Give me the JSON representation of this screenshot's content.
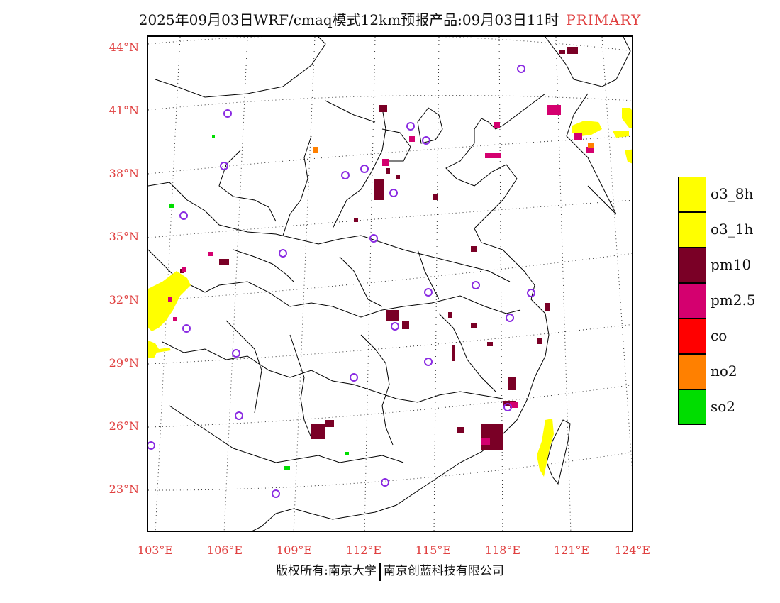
{
  "title": "2025年09月03日WRF/cmaq模式12km预报产品:09月03日11时",
  "title_tag": "PRIMARY",
  "lat_labels": [
    "44°N",
    "41°N",
    "38°N",
    "35°N",
    "32°N",
    "29°N",
    "26°N",
    "23°N"
  ],
  "lon_labels": [
    "103°E",
    "106°E",
    "109°E",
    "112°E",
    "115°E",
    "118°E",
    "121°E",
    "124°E"
  ],
  "legend": [
    {
      "label": "o3_8h",
      "color": "#ffff00"
    },
    {
      "label": "o3_1h",
      "color": "#ffff00"
    },
    {
      "label": "pm10",
      "color": "#7a0026"
    },
    {
      "label": "pm2.5",
      "color": "#d4006f"
    },
    {
      "label": "co",
      "color": "#ff0000"
    },
    {
      "label": "no2",
      "color": "#ff8000"
    },
    {
      "label": "so2",
      "color": "#00dd00"
    }
  ],
  "footer_left": "版权所有:南京大学",
  "footer_right": "南京创蓝科技有限公司",
  "colors": {
    "accent": "#e04040",
    "station": "#8a2be2"
  }
}
